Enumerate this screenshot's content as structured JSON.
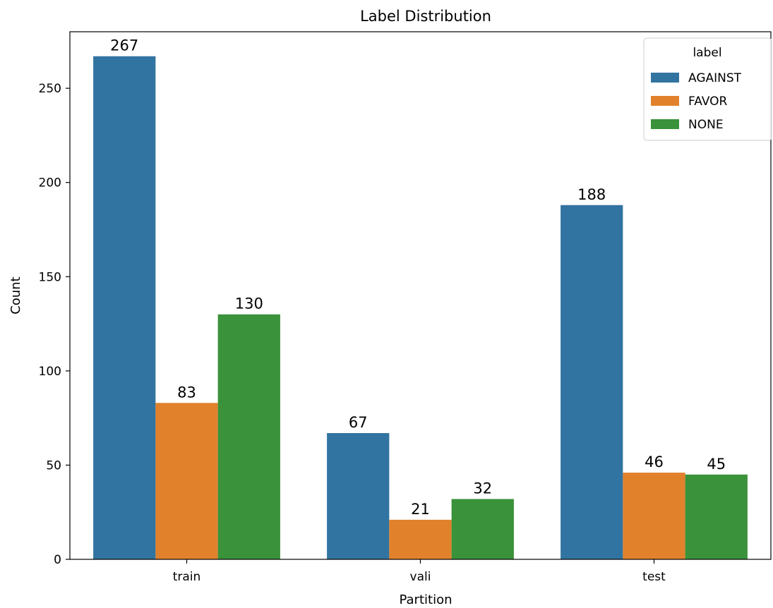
{
  "chart_data": {
    "type": "bar",
    "title": "Label Distribution",
    "xlabel": "Partition",
    "ylabel": "Count",
    "categories": [
      "train",
      "vali",
      "test"
    ],
    "series": [
      {
        "name": "AGAINST",
        "color": "#3274a1",
        "values": [
          267,
          67,
          188
        ]
      },
      {
        "name": "FAVOR",
        "color": "#e1812c",
        "values": [
          83,
          21,
          46
        ]
      },
      {
        "name": "NONE",
        "color": "#3a923a",
        "values": [
          130,
          32,
          45
        ]
      }
    ],
    "ylim": [
      0,
      280
    ],
    "yticks": [
      0,
      50,
      100,
      150,
      200,
      250
    ],
    "legend": {
      "title": "label",
      "position": "top-right"
    },
    "data_labels": true,
    "grid": false
  }
}
